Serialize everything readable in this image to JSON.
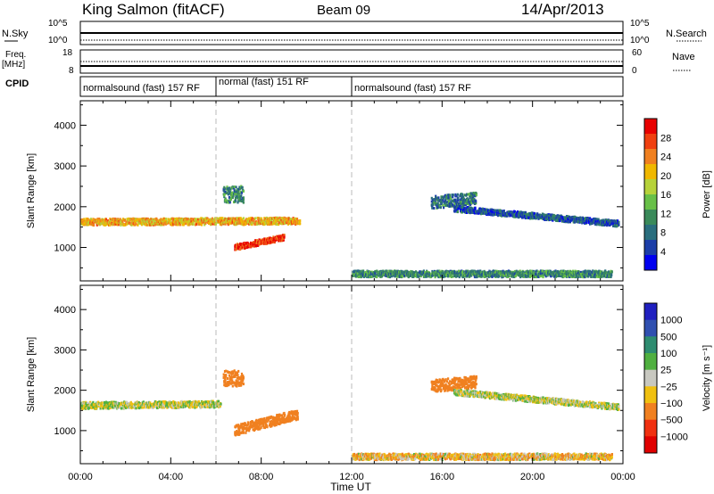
{
  "header": {
    "station": "King Salmon (fitACF)",
    "beam": "Beam 09",
    "date": "14/Apr/2013"
  },
  "mini_panels": {
    "nsky_label": "N.Sky",
    "nsearch_label": "N.Search",
    "freq_label_1": "Freq.",
    "freq_label_2": "[MHz]",
    "nave_label": "Nave",
    "cpid_label": "CPID",
    "left_ticks_top": [
      "10^5",
      "10^0"
    ],
    "right_ticks_top": [
      "10^5",
      "10^0"
    ],
    "left_ticks_freq": [
      "18",
      "8"
    ],
    "right_ticks_freq": [
      "60",
      "0"
    ]
  },
  "cpid_segments": [
    {
      "label": "normalsound (fast) 157 RF",
      "start_hour": 0.0
    },
    {
      "label": "normal (fast) 151 RF",
      "start_hour": 6.0
    },
    {
      "label": "normalsound (fast) 157 RF",
      "start_hour": 12.0
    }
  ],
  "chart_data": [
    {
      "type": "heatmap",
      "panel": "power",
      "ylabel": "Slant Range [km]",
      "xlabel": "Time UT",
      "x_ticks": [
        "00:00",
        "04:00",
        "08:00",
        "12:00",
        "16:00",
        "20:00",
        "00:00"
      ],
      "xlim_hours": [
        0,
        24
      ],
      "y_ticks": [
        1000,
        2000,
        3000,
        4000
      ],
      "ylim": [
        180,
        4600
      ],
      "colorbar_label": "Power [dB]",
      "colorbar_ticks": [
        "28",
        "24",
        "20",
        "16",
        "12",
        "8",
        "4"
      ],
      "colorbar_colors": [
        "#0000f0",
        "#1c3ea8",
        "#2a6e7e",
        "#3a8a5a",
        "#68c048",
        "#b6d23a",
        "#f0b800",
        "#f08020",
        "#f04010",
        "#e80000"
      ],
      "echo_regions": [
        {
          "t": [
            0.0,
            9.7
          ],
          "center_km": [
            1620,
            1650
          ],
          "width_km": 160,
          "value": 20
        },
        {
          "t": [
            6.8,
            9.0
          ],
          "center_km": [
            1000,
            1250
          ],
          "width_km": 140,
          "value": 26
        },
        {
          "t": [
            6.3,
            7.2
          ],
          "center_km": [
            2300,
            2300
          ],
          "width_km": 400,
          "value": 10
        },
        {
          "t": [
            15.5,
            17.5
          ],
          "center_km": [
            2100,
            2200
          ],
          "width_km": 300,
          "value": 8
        },
        {
          "t": [
            16.5,
            23.8
          ],
          "center_km": [
            1950,
            1580
          ],
          "width_km": 140,
          "value": 6
        },
        {
          "t": [
            12.0,
            23.5
          ],
          "center_km": [
            350,
            350
          ],
          "width_km": 150,
          "value": 10
        }
      ]
    },
    {
      "type": "heatmap",
      "panel": "velocity",
      "ylabel": "Slant Range [km]",
      "xlabel": "Time UT",
      "x_ticks": [
        "00:00",
        "04:00",
        "08:00",
        "12:00",
        "16:00",
        "20:00",
        "00:00"
      ],
      "xlim_hours": [
        0,
        24
      ],
      "y_ticks": [
        1000,
        2000,
        3000,
        4000
      ],
      "ylim": [
        180,
        4600
      ],
      "colorbar_label": "Velocity [m s⁻¹]",
      "colorbar_ticks": [
        "1000",
        "500",
        "100",
        "25",
        "−25",
        "−100",
        "−500",
        "−1000"
      ],
      "colorbar_colors": [
        "#2020c0",
        "#3050b0",
        "#2e8c70",
        "#50b040",
        "#c8c8c0",
        "#f0c010",
        "#f08020",
        "#f03010",
        "#e00000"
      ],
      "echo_regions": [
        {
          "t": [
            0.0,
            6.2
          ],
          "center_km": [
            1620,
            1650
          ],
          "width_km": 160,
          "value": 0
        },
        {
          "t": [
            6.8,
            9.6
          ],
          "center_km": [
            1000,
            1400
          ],
          "width_km": 250,
          "value": -400
        },
        {
          "t": [
            6.3,
            7.2
          ],
          "center_km": [
            2300,
            2300
          ],
          "width_km": 400,
          "value": -300
        },
        {
          "t": [
            15.5,
            17.5
          ],
          "center_km": [
            2100,
            2200
          ],
          "width_km": 300,
          "value": -200
        },
        {
          "t": [
            16.5,
            23.8
          ],
          "center_km": [
            1950,
            1580
          ],
          "width_km": 140,
          "value": 0
        },
        {
          "t": [
            12.0,
            23.5
          ],
          "center_km": [
            350,
            350
          ],
          "width_km": 150,
          "value": -60
        }
      ]
    }
  ]
}
